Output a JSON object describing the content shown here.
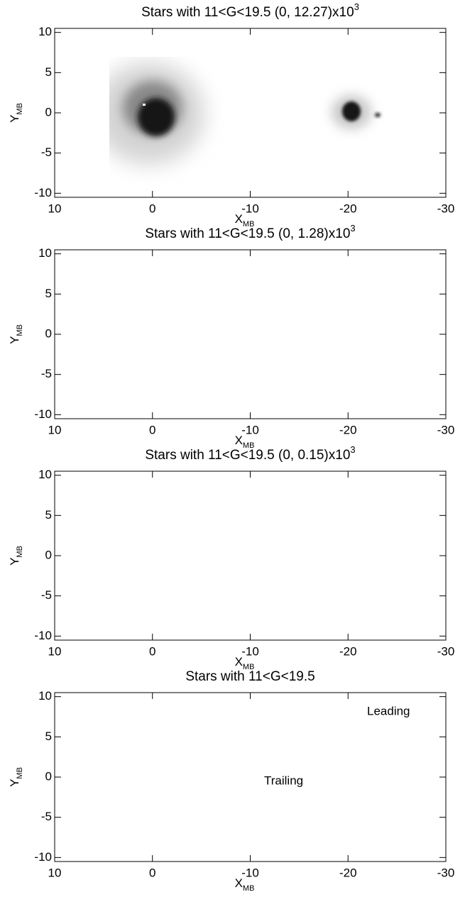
{
  "chart_data": [
    {
      "type": "heatmap",
      "title": "Stars with 11<G<19.5 (0, 12.27)x10",
      "title_exponent": "3",
      "xlabel": "X",
      "xlabel_sub": "MB",
      "ylabel": "Y",
      "ylabel_sub": "MB",
      "xlim": [
        10,
        -30
      ],
      "ylim": [
        -10.5,
        10.5
      ],
      "xticks": [
        10,
        0,
        -10,
        -20,
        -30
      ],
      "yticks": [
        -10,
        -5,
        0,
        5,
        10
      ]
    },
    {
      "type": "heatmap",
      "title": "Stars with 11<G<19.5 (0, 1.28)x10",
      "title_exponent": "3",
      "xlabel": "X",
      "xlabel_sub": "MB",
      "ylabel": "Y",
      "ylabel_sub": "MB",
      "xlim": [
        10,
        -30
      ],
      "ylim": [
        -10.5,
        10.5
      ],
      "xticks": [
        10,
        0,
        -10,
        -20,
        -30
      ],
      "yticks": [
        -10,
        -5,
        0,
        5,
        10
      ]
    },
    {
      "type": "heatmap",
      "title": "Stars with 11<G<19.5 (0, 0.15)x10",
      "title_exponent": "3",
      "xlabel": "X",
      "xlabel_sub": "MB",
      "ylabel": "Y",
      "ylabel_sub": "MB",
      "xlim": [
        10,
        -30
      ],
      "ylim": [
        -10.5,
        10.5
      ],
      "xticks": [
        10,
        0,
        -10,
        -20,
        -30
      ],
      "yticks": [
        -10,
        -5,
        0,
        5,
        10
      ]
    },
    {
      "type": "contour",
      "title": "Stars with 11<G<19.5",
      "xlabel": "X",
      "xlabel_sub": "MB",
      "ylabel": "Y",
      "ylabel_sub": "MB",
      "xlim": [
        10,
        -30
      ],
      "ylim": [
        -10.5,
        10.5
      ],
      "xticks": [
        10,
        0,
        -10,
        -20,
        -30
      ],
      "yticks": [
        -10,
        -5,
        0,
        5,
        10
      ],
      "annotations": [
        "Leading",
        "Trailing"
      ]
    }
  ]
}
